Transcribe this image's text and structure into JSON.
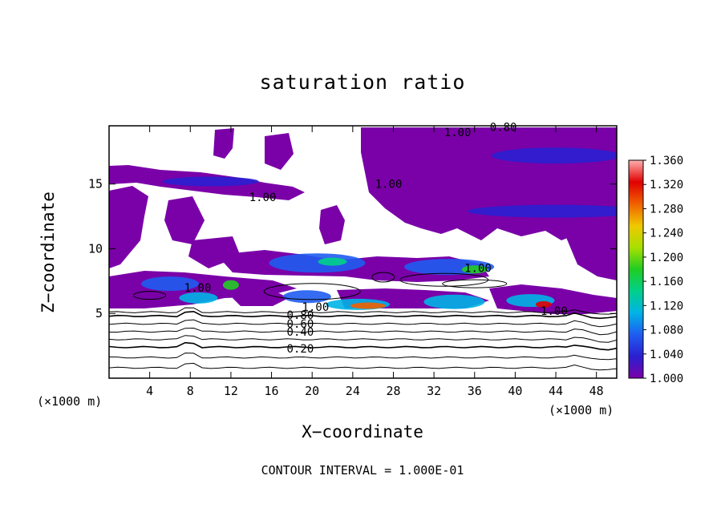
{
  "chart_data": {
    "type": "heatmap",
    "title": "saturation ratio",
    "xlabel": "X−coordinate",
    "ylabel": "Z−coordinate",
    "x_unit_left": "(×1000 m)",
    "x_unit_right": "(×1000 m)",
    "footnote": "CONTOUR INTERVAL = 1.000E-01",
    "xlim": [
      0,
      50
    ],
    "ylim": [
      0,
      19.5
    ],
    "x_ticks": [
      4,
      8,
      12,
      16,
      20,
      24,
      28,
      32,
      36,
      40,
      44,
      48
    ],
    "y_ticks": [
      5,
      10,
      15
    ],
    "colorbar": {
      "min": 1.0,
      "max": 1.36,
      "ticks": [
        "1.000",
        "1.040",
        "1.080",
        "1.120",
        "1.160",
        "1.200",
        "1.240",
        "1.280",
        "1.320",
        "1.360"
      ],
      "colors": [
        "#7a00a8",
        "#2a1fd0",
        "#1f5cf0",
        "#00b4e6",
        "#00d08a",
        "#22cc22",
        "#a8e000",
        "#f0c800",
        "#f06000",
        "#e00000",
        "#ffb0b0"
      ]
    },
    "contour_labels": [
      {
        "text": "0.20",
        "x": 17.5,
        "z": 2.3
      },
      {
        "text": "0.40",
        "x": 17.5,
        "z": 3.6
      },
      {
        "text": "0.60",
        "x": 17.5,
        "z": 4.2
      },
      {
        "text": "0.80",
        "x": 17.5,
        "z": 4.9
      },
      {
        "text": "1.00",
        "x": 19.0,
        "z": 5.5
      },
      {
        "text": "1.00",
        "x": 7.4,
        "z": 7.0
      },
      {
        "text": "1.00",
        "x": 42.5,
        "z": 5.2
      },
      {
        "text": "1.00",
        "x": 13.8,
        "z": 14.0
      },
      {
        "text": "1.00",
        "x": 26.2,
        "z": 15.0
      },
      {
        "text": "1.00",
        "x": 35.0,
        "z": 8.5
      },
      {
        "text": "1.00",
        "x": 33.0,
        "z": 19.0
      },
      {
        "text": "0.80",
        "x": 37.5,
        "z": 19.4
      }
    ]
  }
}
